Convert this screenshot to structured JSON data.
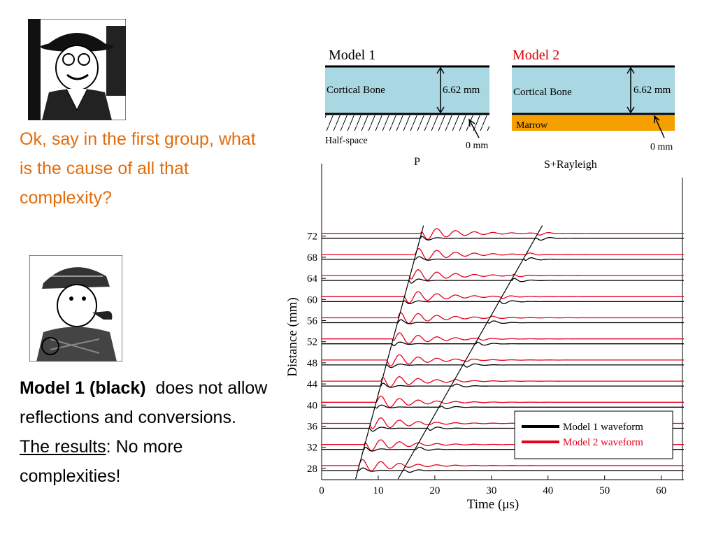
{
  "question_text": "Ok, say in the first group, what is the cause of all that complexity?",
  "answer": {
    "bold_part": "Model 1 (black)",
    "rest_part": "does not allow reflections and conversions.",
    "results_label": "The results",
    "results_text": ":  No more complexities!"
  },
  "models": {
    "model1": {
      "title": "Model 1",
      "layer": "Cortical Bone",
      "thickness": "6.62 mm",
      "base": "Half-space",
      "zero": "0 mm"
    },
    "model2": {
      "title": "Model 2",
      "layer": "Cortical Bone",
      "thickness": "6.62 mm",
      "base": "Marrow",
      "zero": "0 mm"
    }
  },
  "colors": {
    "question": "#e46c0a",
    "bone": "#a9d7e2",
    "marrow": "#f5a000",
    "model2_title": "#dd0000",
    "model1_wave": "#000000",
    "model2_wave": "#e8001c"
  },
  "chart_data": {
    "type": "line",
    "xlabel": "Time (μs)",
    "ylabel": "Distance (mm)",
    "xlim": [
      0,
      64
    ],
    "x_ticks": [
      0,
      10,
      20,
      30,
      40,
      50,
      60
    ],
    "y_ticks": [
      28,
      32,
      36,
      40,
      44,
      48,
      52,
      56,
      60,
      64,
      68,
      72
    ],
    "annotations": [
      "P",
      "S+Rayleigh"
    ],
    "p_line": [
      [
        6,
        26
      ],
      [
        18,
        74
      ]
    ],
    "s_line": [
      [
        13.5,
        26
      ],
      [
        39,
        74
      ]
    ],
    "series": [
      {
        "name": "Model 1 waveform",
        "color": "#000000"
      },
      {
        "name": "Model 2 waveform",
        "color": "#e8001c"
      }
    ],
    "legend_position": "bottom-right",
    "grid": false
  }
}
